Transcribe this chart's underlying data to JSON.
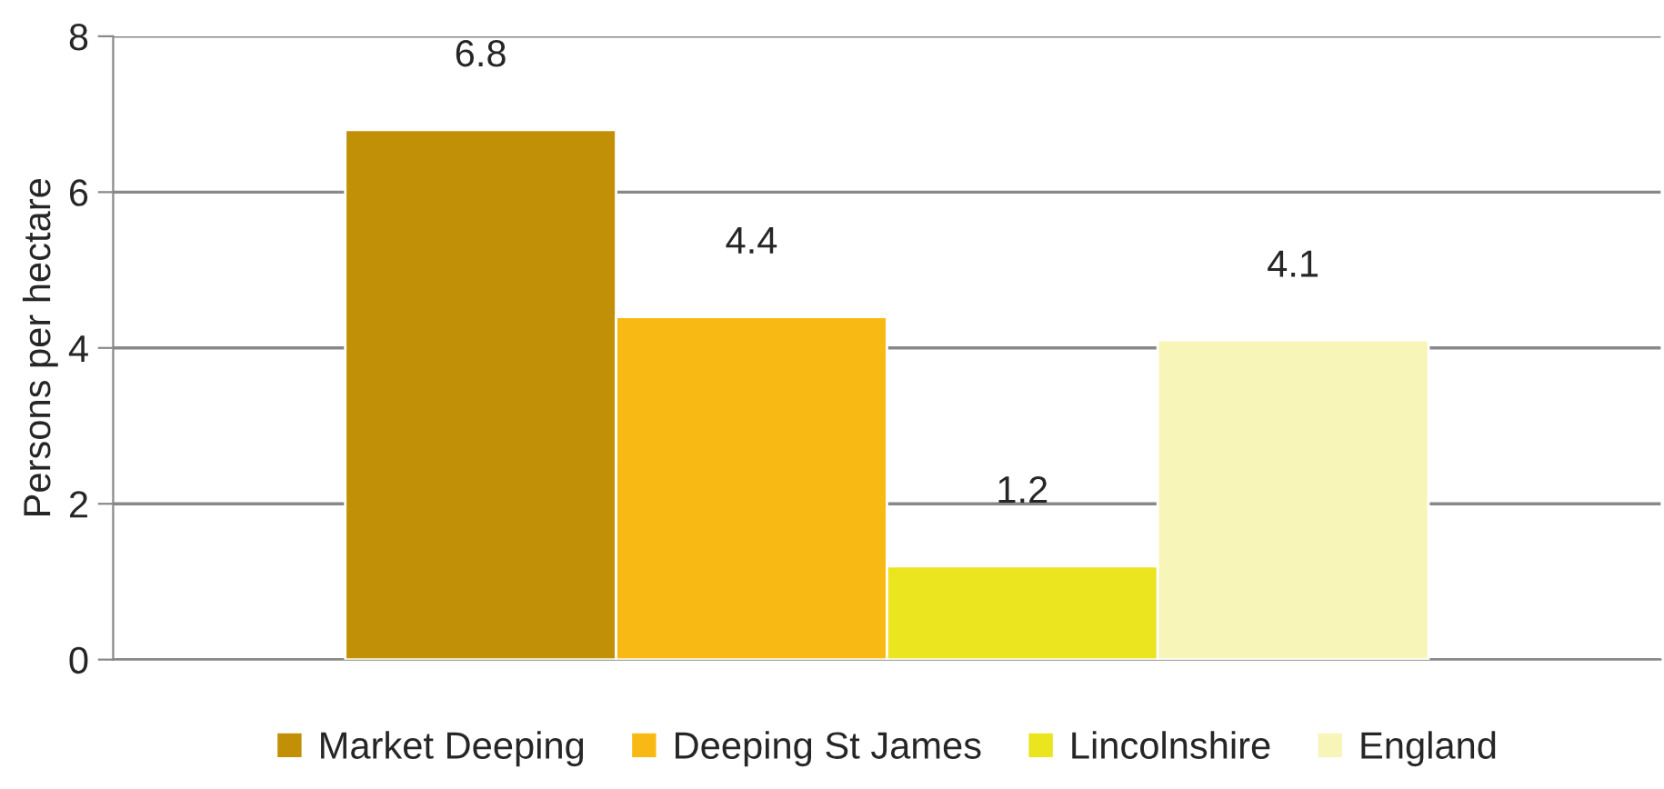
{
  "chart_data": {
    "type": "bar",
    "ylabel": "Persons per hectare",
    "categories": [
      null
    ],
    "series": [
      {
        "name": "Market Deeping",
        "color": "#c29006",
        "values": [
          6.8
        ]
      },
      {
        "name": "Deeping St James",
        "color": "#f8b914",
        "values": [
          4.4
        ]
      },
      {
        "name": "Lincolnshire",
        "color": "#ebe51f",
        "values": [
          1.2
        ]
      },
      {
        "name": "England",
        "color": "#f8f5b8",
        "values": [
          4.1
        ]
      }
    ],
    "ylim": [
      0,
      8
    ],
    "yticks": [
      0,
      2,
      4,
      6,
      8
    ],
    "grid": "y",
    "data_labels": true,
    "legend": "bottom"
  }
}
